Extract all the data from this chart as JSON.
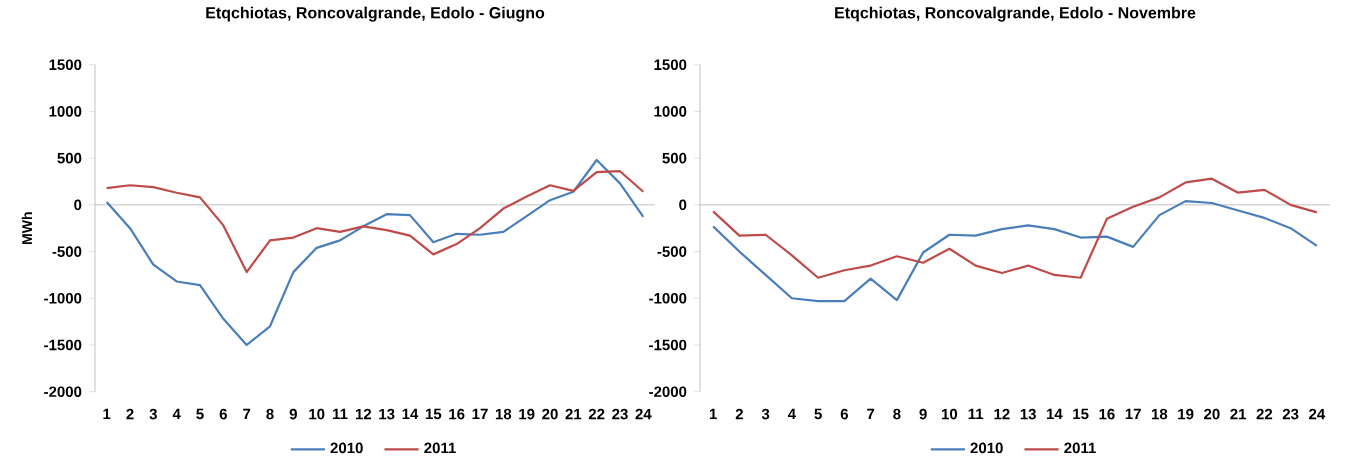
{
  "chart_data": [
    {
      "type": "line",
      "title": "Etqchiotas, Roncovalgrande, Edolo - Giugno",
      "ylabel": "MWh",
      "categories": [
        "1",
        "2",
        "3",
        "4",
        "5",
        "6",
        "7",
        "8",
        "9",
        "10",
        "11",
        "12",
        "13",
        "14",
        "15",
        "16",
        "17",
        "18",
        "19",
        "20",
        "21",
        "22",
        "23",
        "24"
      ],
      "series": [
        {
          "name": "2010",
          "color": "#4a7ebb",
          "values": [
            30,
            -250,
            -640,
            -820,
            -860,
            -1220,
            -1500,
            -1300,
            -720,
            -460,
            -380,
            -230,
            -100,
            -110,
            -400,
            -310,
            -320,
            -290,
            -120,
            50,
            140,
            480,
            230,
            -130
          ]
        },
        {
          "name": "2011",
          "color": "#be4b48",
          "values": [
            180,
            210,
            190,
            130,
            80,
            -220,
            -720,
            -380,
            -350,
            -250,
            -290,
            -230,
            -270,
            -330,
            -530,
            -420,
            -250,
            -40,
            90,
            210,
            150,
            350,
            360,
            140
          ]
        }
      ],
      "ylim": [
        -2000,
        1500
      ],
      "yticks": [
        -2000,
        -1500,
        -1000,
        -500,
        0,
        500,
        1000,
        1500
      ],
      "legend": "bottom"
    },
    {
      "type": "line",
      "title": "Etqchiotas, Roncovalgrande, Edolo - Novembre",
      "categories": [
        "1",
        "2",
        "3",
        "4",
        "5",
        "6",
        "7",
        "8",
        "9",
        "10",
        "11",
        "12",
        "13",
        "14",
        "15",
        "16",
        "17",
        "18",
        "19",
        "20",
        "21",
        "22",
        "23",
        "24"
      ],
      "series": [
        {
          "name": "2010",
          "color": "#4a7ebb",
          "values": [
            -230,
            -500,
            -750,
            -1000,
            -1030,
            -1030,
            -790,
            -1020,
            -510,
            -320,
            -330,
            -260,
            -220,
            -260,
            -350,
            -340,
            -450,
            -110,
            40,
            20,
            -60,
            -140,
            -250,
            -440
          ]
        },
        {
          "name": "2011",
          "color": "#be4b48",
          "values": [
            -70,
            -330,
            -320,
            -540,
            -780,
            -700,
            -650,
            -550,
            -620,
            -470,
            -650,
            -730,
            -650,
            -750,
            -780,
            -150,
            -20,
            80,
            240,
            280,
            130,
            160,
            0,
            -80
          ]
        }
      ],
      "ylim": [
        -2000,
        1500
      ],
      "yticks": [
        -2000,
        -1500,
        -1000,
        -500,
        0,
        500,
        1000,
        1500
      ],
      "legend": "bottom"
    }
  ]
}
